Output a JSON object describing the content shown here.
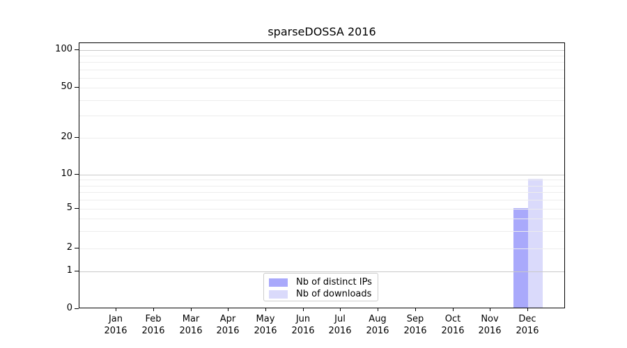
{
  "figure": {
    "background": "#ffffff"
  },
  "chart_data": {
    "type": "bar",
    "title": "sparseDOSSA 2016",
    "x_ticks": [
      {
        "month": "Jan",
        "year": "2016"
      },
      {
        "month": "Feb",
        "year": "2016"
      },
      {
        "month": "Mar",
        "year": "2016"
      },
      {
        "month": "Apr",
        "year": "2016"
      },
      {
        "month": "May",
        "year": "2016"
      },
      {
        "month": "Jun",
        "year": "2016"
      },
      {
        "month": "Jul",
        "year": "2016"
      },
      {
        "month": "Aug",
        "year": "2016"
      },
      {
        "month": "Sep",
        "year": "2016"
      },
      {
        "month": "Oct",
        "year": "2016"
      },
      {
        "month": "Nov",
        "year": "2016"
      },
      {
        "month": "Dec",
        "year": "2016"
      }
    ],
    "series": [
      {
        "name": "Nb of distinct IPs",
        "color": "#a9a9fb",
        "values": [
          0,
          0,
          0,
          0,
          0,
          0,
          0,
          0,
          0,
          0,
          0,
          5
        ]
      },
      {
        "name": "Nb of downloads",
        "color": "#dadafb",
        "values": [
          0,
          0,
          0,
          0,
          0,
          0,
          0,
          0,
          0,
          0,
          0,
          9
        ]
      }
    ],
    "y_axis": {
      "tick_labels": [
        "0",
        "1",
        "2",
        "5",
        "10",
        "20",
        "50",
        "100"
      ],
      "tick_values": [
        0,
        1,
        2,
        5,
        10,
        20,
        50,
        100
      ],
      "major_gridlines": [
        1,
        10,
        100
      ],
      "minor_gridlines": [
        2,
        3,
        4,
        5,
        6,
        7,
        8,
        9,
        20,
        30,
        40,
        50,
        60,
        70,
        80,
        90
      ],
      "scale": "log-like above 1, linear 0-1",
      "ylim": [
        0,
        115
      ]
    },
    "grid": true,
    "legend_position": "bottom-center",
    "colors": {
      "major_grid": "#c9c9c9",
      "minor_grid": "#ededed",
      "spine": "#000000",
      "tick": "#000000"
    }
  }
}
